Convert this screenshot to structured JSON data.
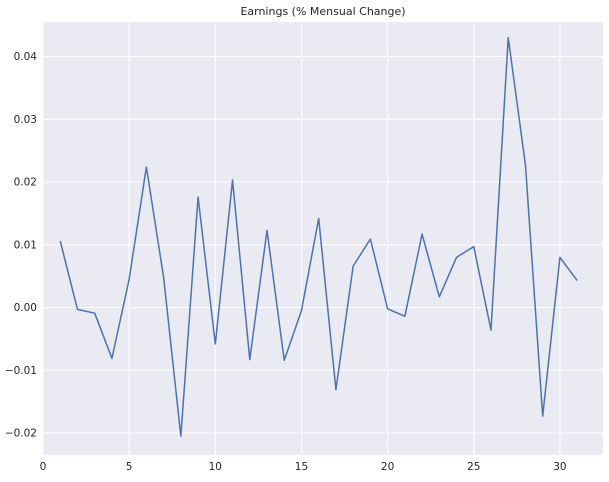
{
  "chart_data": {
    "type": "line",
    "title": "Earnings (% Mensual Change)",
    "xlabel": "",
    "ylabel": "",
    "xlim": [
      0,
      32.5
    ],
    "ylim": [
      -0.0235,
      0.0455
    ],
    "xticks": [
      0,
      5,
      10,
      15,
      20,
      25,
      30
    ],
    "yticks": [
      -0.02,
      -0.01,
      0.0,
      0.01,
      0.02,
      0.03,
      0.04
    ],
    "ytick_labels": [
      "−0.02",
      "−0.01",
      "0.00",
      "0.01",
      "0.02",
      "0.03",
      "0.04"
    ],
    "grid": true,
    "legend": "none",
    "series": [
      {
        "color": "#4c72b0",
        "x": [
          1,
          2,
          3,
          4,
          5,
          6,
          7,
          8,
          9,
          10,
          11,
          12,
          13,
          14,
          15,
          16,
          17,
          18,
          19,
          20,
          21,
          22,
          23,
          24,
          25,
          26,
          27,
          28,
          29,
          30,
          31
        ],
        "y": [
          0.0106,
          -0.0003,
          -0.0009,
          -0.0081,
          0.0045,
          0.0224,
          0.0048,
          -0.0205,
          0.0176,
          -0.0058,
          0.0203,
          -0.0083,
          0.0123,
          -0.0084,
          -0.0005,
          0.0142,
          -0.0131,
          0.0066,
          0.0109,
          -0.0002,
          -0.0014,
          0.0117,
          0.0017,
          0.008,
          0.0097,
          -0.0036,
          0.043,
          0.0227,
          -0.0173,
          0.008,
          0.0043
        ]
      }
    ],
    "colors": {
      "plot_background": "#eaeaf2",
      "grid": "#ffffff",
      "text": "#262626"
    }
  }
}
